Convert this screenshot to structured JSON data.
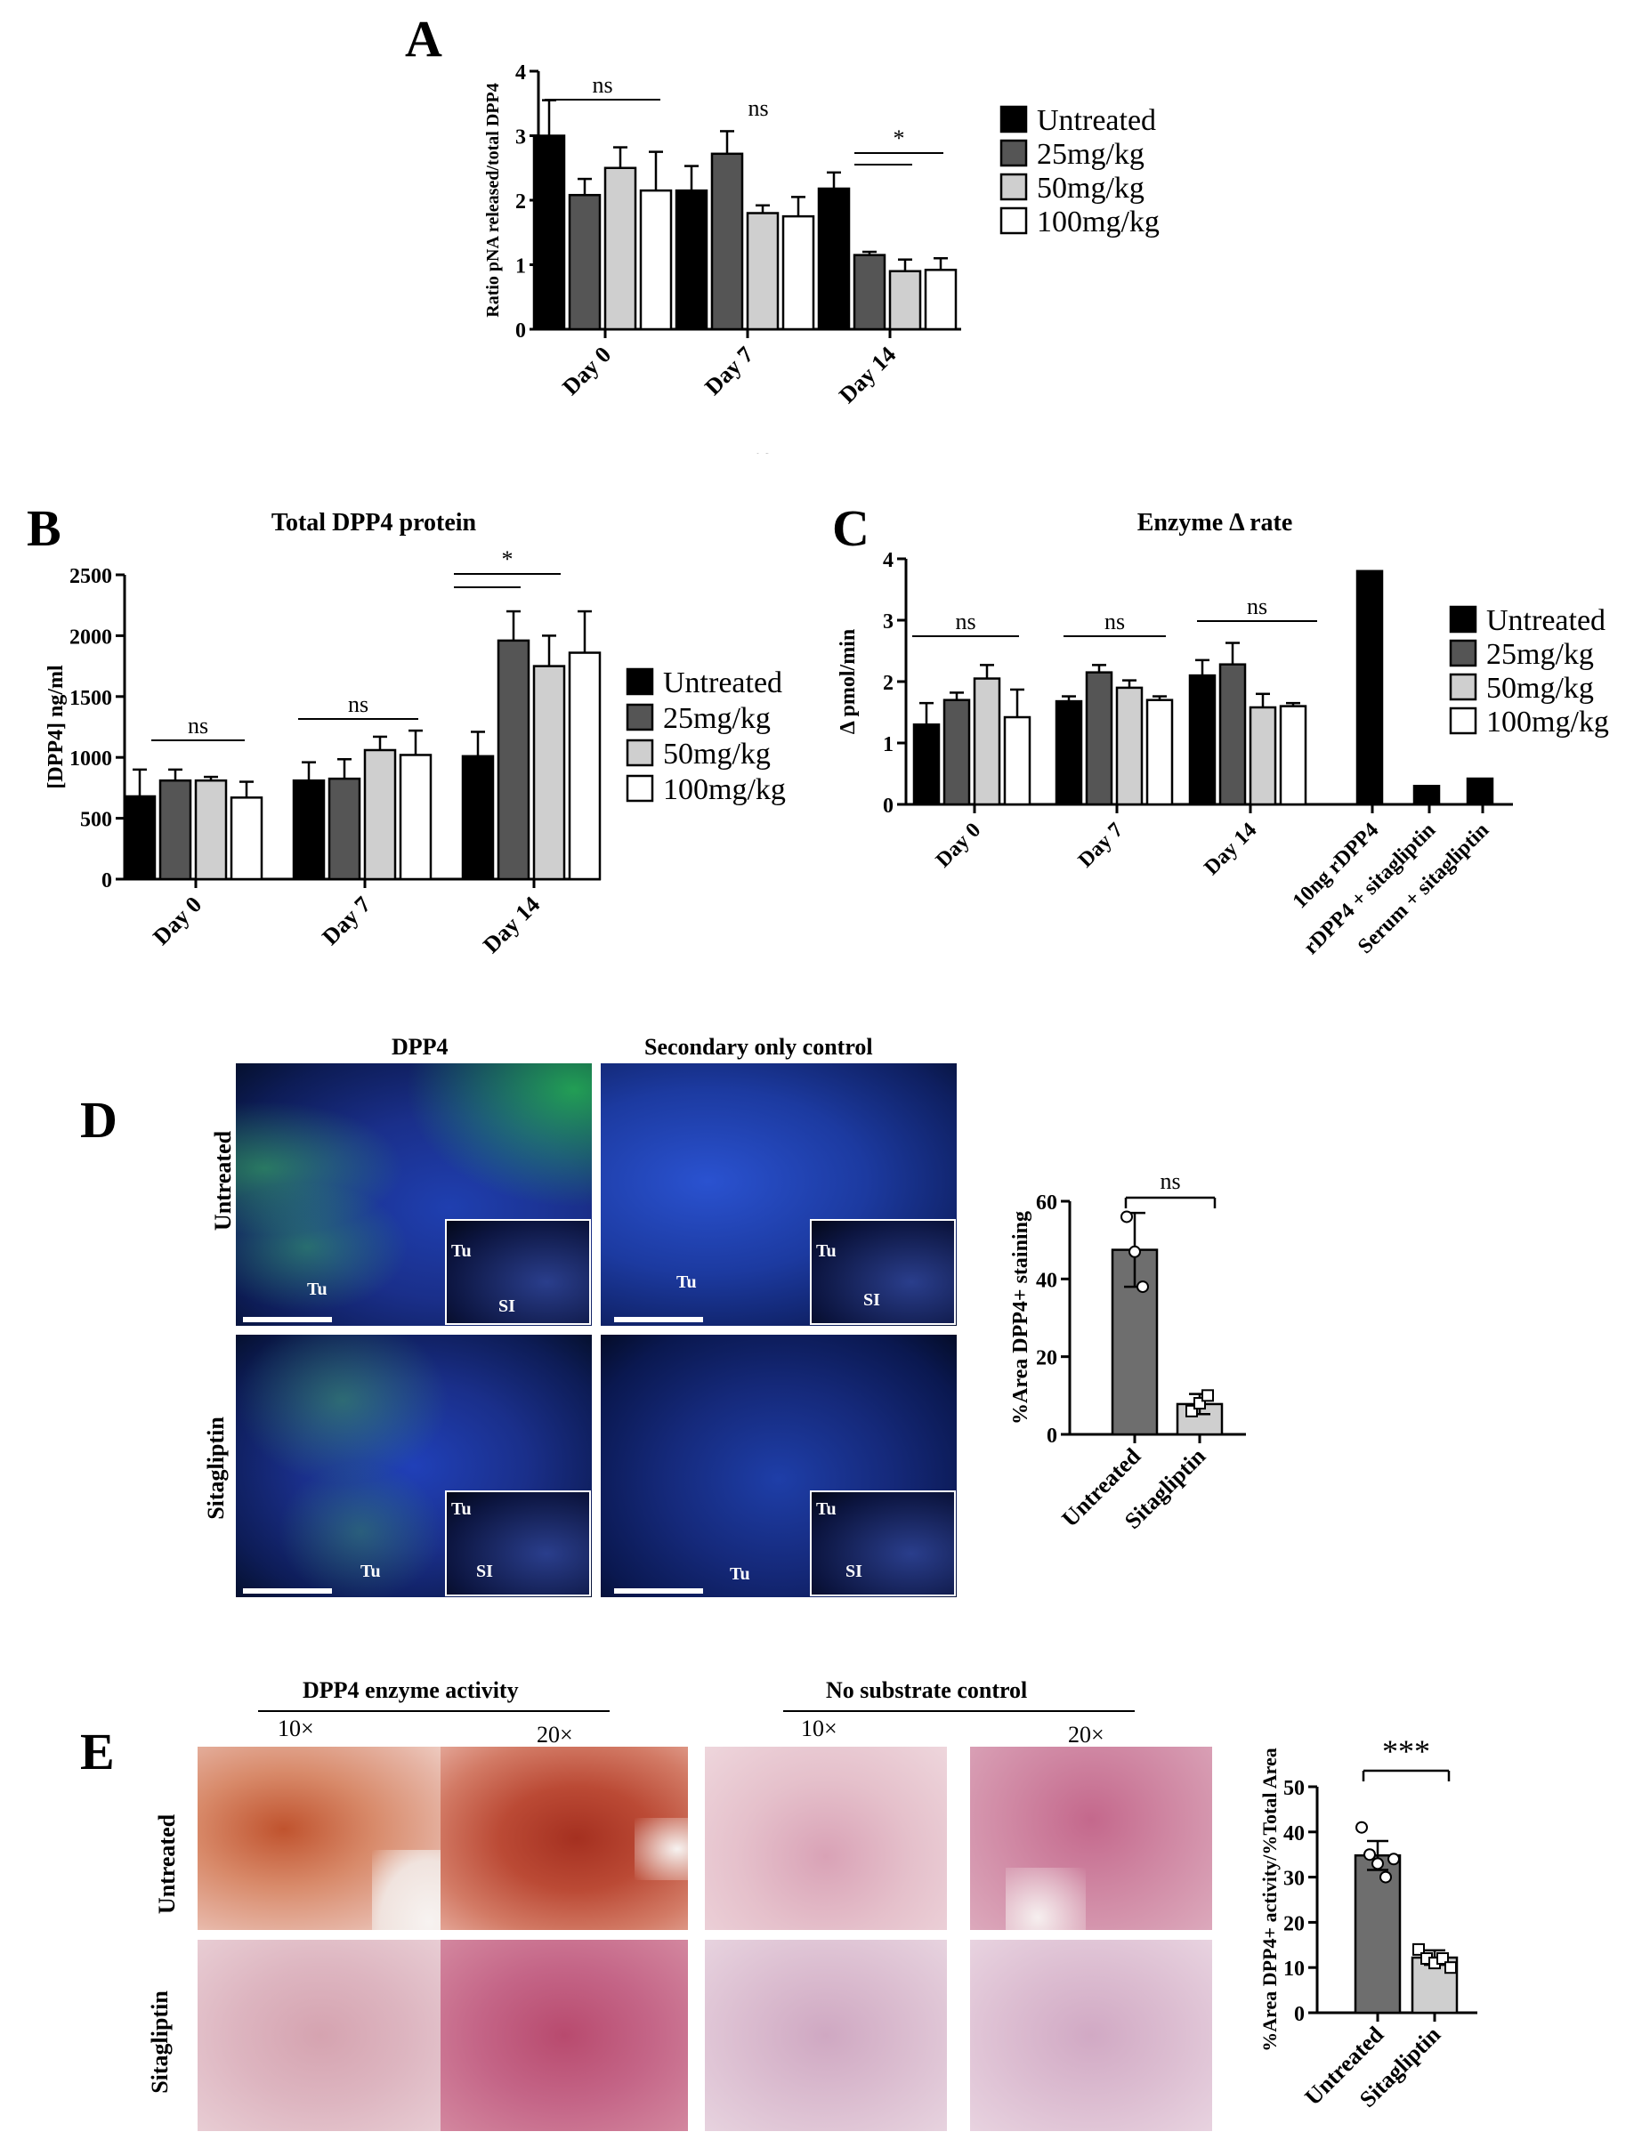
{
  "panel_letters": {
    "A": "A",
    "B": "B",
    "C": "C",
    "D": "D",
    "E": "E"
  },
  "colors": {
    "untreated": "#000000",
    "d25": "#555555",
    "d50": "#cfcfcf",
    "d100": "#ffffff",
    "sita": "#cfcfcf",
    "untr_bar": "#6e6e6e"
  },
  "legend_labels": [
    "Untreated",
    "25mg/kg",
    "50mg/kg",
    "100mg/kg"
  ],
  "chart_data": [
    {
      "id": "A",
      "type": "bar",
      "title": "",
      "ylabel": "Ratio pNA released/total DPP4",
      "xlabel": "",
      "ylim": [
        0,
        4
      ],
      "yticks": [
        "0",
        "1",
        "2",
        "3",
        "4"
      ],
      "categories": [
        "Day 0",
        "Day 7",
        "Day 14"
      ],
      "series": [
        {
          "name": "Untreated",
          "values": [
            3.0,
            2.15,
            2.18
          ],
          "errors": [
            0.55,
            0.38,
            0.25
          ]
        },
        {
          "name": "25mg/kg",
          "values": [
            2.08,
            2.72,
            1.15
          ],
          "errors": [
            0.25,
            0.35,
            0.05
          ]
        },
        {
          "name": "50mg/kg",
          "values": [
            2.5,
            1.8,
            0.9
          ],
          "errors": [
            0.32,
            0.12,
            0.18
          ]
        },
        {
          "name": "100mg/kg",
          "values": [
            2.15,
            1.75,
            0.92
          ],
          "errors": [
            0.6,
            0.3,
            0.18
          ]
        }
      ],
      "annotations": [
        "ns",
        "ns",
        "*"
      ],
      "legend": "right"
    },
    {
      "id": "B",
      "type": "bar",
      "title": "Total DPP4 protein",
      "ylabel": "[DPP4] ng/ml",
      "xlabel": "",
      "ylim": [
        0,
        2500
      ],
      "yticks": [
        "0",
        "500",
        "1000",
        "1500",
        "2000",
        "2500"
      ],
      "categories": [
        "Day 0",
        "Day 7",
        "Day 14"
      ],
      "series": [
        {
          "name": "Untreated",
          "values": [
            680,
            810,
            1010
          ],
          "errors": [
            220,
            150,
            200
          ]
        },
        {
          "name": "25mg/kg",
          "values": [
            810,
            825,
            1960
          ],
          "errors": [
            90,
            160,
            240
          ]
        },
        {
          "name": "50mg/kg",
          "values": [
            810,
            1060,
            1750
          ],
          "errors": [
            30,
            110,
            250
          ]
        },
        {
          "name": "100mg/kg",
          "values": [
            670,
            1020,
            1860
          ],
          "errors": [
            130,
            200,
            340
          ]
        }
      ],
      "annotations": [
        "ns",
        "ns",
        "*"
      ],
      "legend": "right"
    },
    {
      "id": "C",
      "type": "bar",
      "title": "Enzyme Δ rate",
      "ylabel": "Δ pmol/min",
      "xlabel": "",
      "ylim": [
        0,
        4
      ],
      "yticks": [
        "0",
        "1",
        "2",
        "3",
        "4"
      ],
      "categories": [
        "Day 0",
        "Day 7",
        "Day 14",
        "10ng rDPP4",
        "rDPP4 + sitagliptin",
        "Serum + sitagliptin"
      ],
      "series": [
        {
          "name": "Untreated",
          "values": [
            1.3,
            1.68,
            2.1,
            3.8,
            0.3,
            0.42
          ],
          "errors": [
            0.35,
            0.08,
            0.25,
            0,
            0,
            0
          ]
        },
        {
          "name": "25mg/kg",
          "values": [
            1.7,
            2.15,
            2.28,
            null,
            null,
            null
          ],
          "errors": [
            0.12,
            0.12,
            0.35,
            0,
            0,
            0
          ]
        },
        {
          "name": "50mg/kg",
          "values": [
            2.05,
            1.9,
            1.58,
            null,
            null,
            null
          ],
          "errors": [
            0.22,
            0.12,
            0.22,
            0,
            0,
            0
          ]
        },
        {
          "name": "100mg/kg",
          "values": [
            1.42,
            1.7,
            1.6,
            null,
            null,
            null
          ],
          "errors": [
            0.45,
            0.06,
            0.05,
            0,
            0,
            0
          ]
        }
      ],
      "annotations": [
        "ns",
        "ns",
        "ns"
      ],
      "legend": "right"
    },
    {
      "id": "D",
      "type": "bar",
      "title": "",
      "ylabel": "%Area DPP4+ staining",
      "xlabel": "",
      "ylim": [
        0,
        60
      ],
      "yticks": [
        "0",
        "20",
        "40",
        "60"
      ],
      "categories": [
        "Untreated",
        "Sitagliptin"
      ],
      "values": [
        47.5,
        7.8
      ],
      "errors": [
        9.5,
        2.6
      ],
      "points": [
        [
          56,
          47,
          38
        ],
        [
          6,
          8,
          10
        ]
      ],
      "annotations": [
        "ns"
      ]
    },
    {
      "id": "E",
      "type": "bar",
      "title": "",
      "ylabel": "%Area DPP4+ activity/%Total Area",
      "xlabel": "",
      "ylim": [
        0,
        50
      ],
      "yticks": [
        "0",
        "10",
        "20",
        "30",
        "40",
        "50"
      ],
      "categories": [
        "Untreated",
        "Sitagliptin"
      ],
      "values": [
        34.8,
        12.2
      ],
      "errors": [
        3.2,
        1.6
      ],
      "points": [
        [
          41,
          35,
          33,
          30,
          34
        ],
        [
          14,
          12,
          11,
          12,
          10
        ]
      ],
      "annotations": [
        "***"
      ]
    }
  ],
  "panel_D": {
    "col_titles": [
      "DPP4",
      "Secondary only control"
    ],
    "row_labels": [
      "Untreated",
      "Sitagliptin"
    ],
    "tissue_labels": {
      "tu": "Tu",
      "si": "SI"
    }
  },
  "panel_E": {
    "group_titles": [
      "DPP4 enzyme activity",
      "No substrate control"
    ],
    "mag_labels": [
      "10×",
      "20×",
      "10×",
      "20×"
    ],
    "row_labels": [
      "Untreated",
      "Sitagliptin"
    ]
  }
}
